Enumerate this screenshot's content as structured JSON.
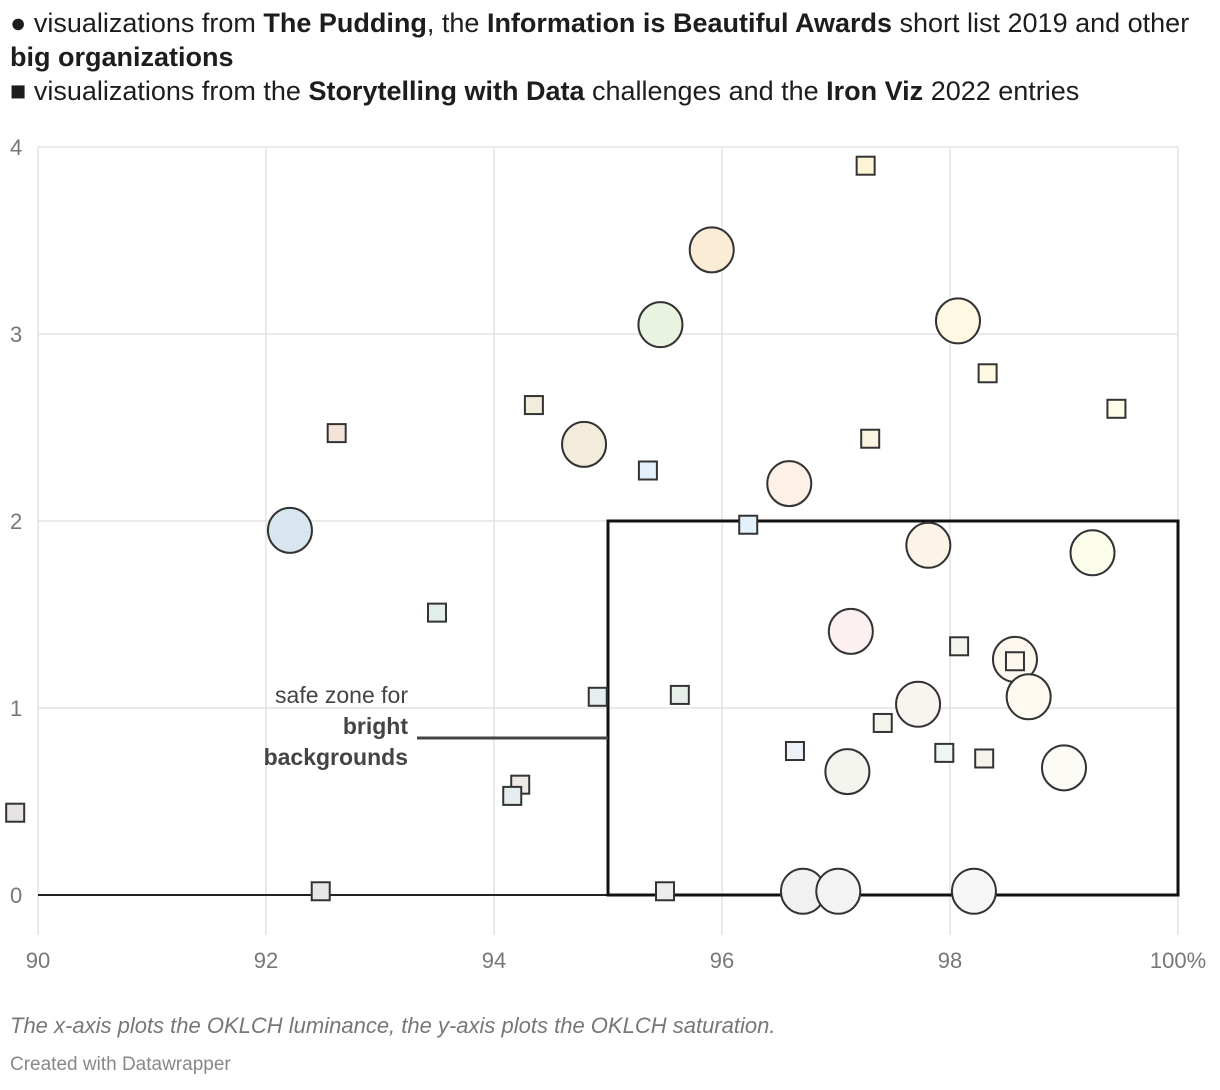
{
  "legend": {
    "line1": {
      "marker": "●",
      "t1": " visualizations from ",
      "b1": "The Pudding",
      "t2": ", the ",
      "b2": "Information is Beautiful Awards",
      "t3": " short list 2019 and other ",
      "b3": "big organizations"
    },
    "line2": {
      "marker": "■",
      "t1": " visualizations from the ",
      "b1": "Storytelling with Data",
      "t2": " challenges and the ",
      "b2": "Iron Viz",
      "t3": " 2022 entries"
    }
  },
  "annotation": {
    "line1": "safe zone for",
    "line2": "bright",
    "line3": "backgrounds"
  },
  "footer": {
    "note": "The x-axis plots the OKLCH luminance, the y-axis plots the OKLCH saturation.",
    "credit": "Created with Datawrapper"
  },
  "chart_data": {
    "type": "scatter",
    "xlim": [
      90,
      100
    ],
    "ylim": [
      0,
      4
    ],
    "x_ticks": [
      "90",
      "92",
      "94",
      "96",
      "98",
      "100%"
    ],
    "y_ticks": [
      "0",
      "1",
      "2",
      "3",
      "4"
    ],
    "grid": true,
    "safe_zone": {
      "x": [
        95,
        100
      ],
      "y": [
        0,
        2
      ]
    },
    "series": [
      {
        "name": "visualizations from The Pudding, the Information is Beautiful Awards short list 2019 and other big organizations",
        "shape": "circle",
        "points": [
          {
            "x": 92.21,
            "y": 1.95,
            "color": "#d8e6f0"
          },
          {
            "x": 94.79,
            "y": 2.41,
            "color": "#f3ecdc"
          },
          {
            "x": 95.46,
            "y": 3.05,
            "color": "#e8f3e0"
          },
          {
            "x": 95.91,
            "y": 3.45,
            "color": "#fbecd6"
          },
          {
            "x": 98.07,
            "y": 3.07,
            "color": "#fff8e2"
          },
          {
            "x": 96.59,
            "y": 2.2,
            "color": "#fdf0e6"
          },
          {
            "x": 97.81,
            "y": 1.87,
            "color": "#fdf4e8"
          },
          {
            "x": 99.25,
            "y": 1.83,
            "color": "#fcfdea"
          },
          {
            "x": 97.13,
            "y": 1.41,
            "color": "#fdf0f0"
          },
          {
            "x": 98.57,
            "y": 1.26,
            "color": "#fdf8ef"
          },
          {
            "x": 98.69,
            "y": 1.06,
            "color": "#fefaf2"
          },
          {
            "x": 97.72,
            "y": 1.02,
            "color": "#f8f5ee"
          },
          {
            "x": 97.1,
            "y": 0.66,
            "color": "#f3f4ee"
          },
          {
            "x": 99.0,
            "y": 0.68,
            "color": "#fdfbf5"
          },
          {
            "x": 96.71,
            "y": 0.02,
            "color": "#f1f1f1"
          },
          {
            "x": 97.02,
            "y": 0.02,
            "color": "#f3f3f3"
          },
          {
            "x": 98.21,
            "y": 0.02,
            "color": "#f7f7f7"
          }
        ]
      },
      {
        "name": "visualizations from the Storytelling with Data challenges and the Iron Viz 2022 entries",
        "shape": "square",
        "points": [
          {
            "x": 97.26,
            "y": 3.9,
            "color": "#fdf3d6"
          },
          {
            "x": 94.35,
            "y": 2.62,
            "color": "#f3ebdb"
          },
          {
            "x": 92.62,
            "y": 2.47,
            "color": "#f3e3d8"
          },
          {
            "x": 98.33,
            "y": 2.79,
            "color": "#fff8e3"
          },
          {
            "x": 99.46,
            "y": 2.6,
            "color": "#fefde9"
          },
          {
            "x": 97.3,
            "y": 2.44,
            "color": "#faf3e2"
          },
          {
            "x": 95.35,
            "y": 2.27,
            "color": "#e3f1fa"
          },
          {
            "x": 96.23,
            "y": 1.98,
            "color": "#e3f1fa"
          },
          {
            "x": 93.5,
            "y": 1.51,
            "color": "#e2eeea"
          },
          {
            "x": 94.91,
            "y": 1.06,
            "color": "#e6eef2"
          },
          {
            "x": 95.63,
            "y": 1.07,
            "color": "#e8efea"
          },
          {
            "x": 98.08,
            "y": 1.33,
            "color": "#f4f5ee"
          },
          {
            "x": 98.57,
            "y": 1.25,
            "color": "#fdf8ef"
          },
          {
            "x": 97.41,
            "y": 0.92,
            "color": "#f4f4ec"
          },
          {
            "x": 96.64,
            "y": 0.77,
            "color": "#ecf2f8"
          },
          {
            "x": 97.95,
            "y": 0.76,
            "color": "#eef5f5"
          },
          {
            "x": 98.3,
            "y": 0.73,
            "color": "#f6f2ec"
          },
          {
            "x": 94.23,
            "y": 0.59,
            "color": "#efe9e5"
          },
          {
            "x": 94.16,
            "y": 0.53,
            "color": "#e5ecef"
          },
          {
            "x": 92.48,
            "y": 0.02,
            "color": "#e6e6e6"
          },
          {
            "x": 95.5,
            "y": 0.02,
            "color": "#ececec"
          },
          {
            "x": 89.8,
            "y": 0.44,
            "color": "#e8e3e3"
          }
        ]
      }
    ]
  }
}
